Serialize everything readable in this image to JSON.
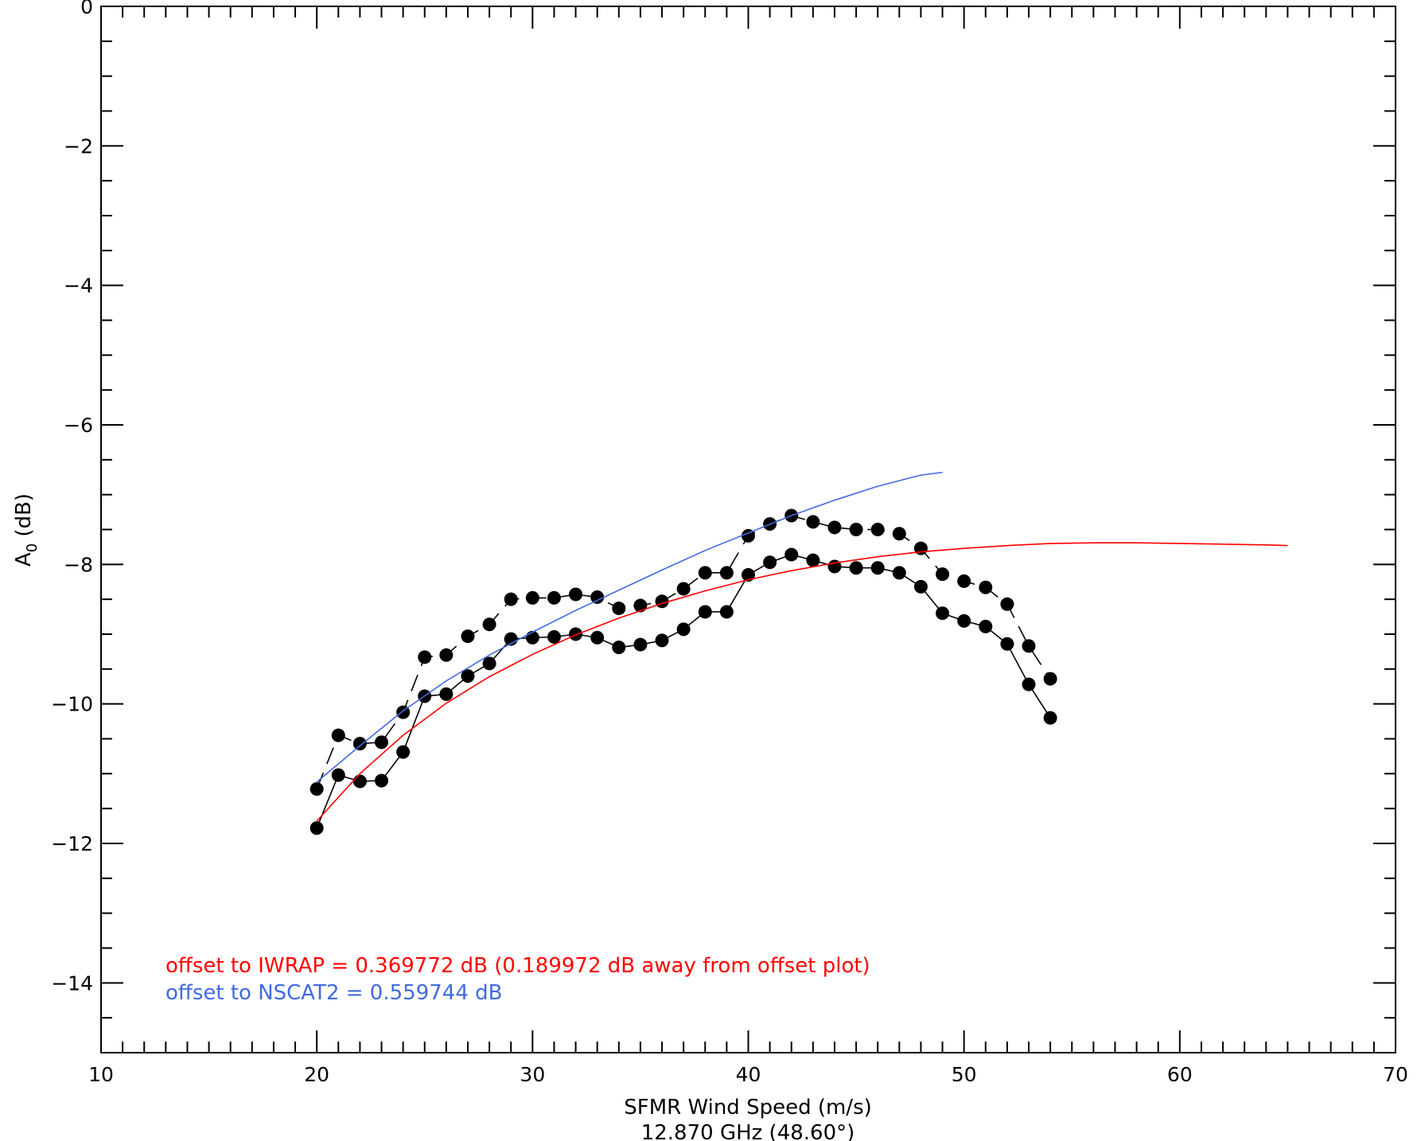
{
  "chart_data": {
    "type": "line",
    "xlabel": "SFMR Wind Speed (m/s)",
    "xlabel_sub": "12.870 GHz (48.60°)",
    "ylabel_main": "A",
    "ylabel_sub": "0",
    "ylabel_unit": " (dB)",
    "xlim": [
      10,
      70
    ],
    "ylim": [
      -15,
      0
    ],
    "x_ticks": [
      10,
      20,
      30,
      40,
      50,
      60,
      70
    ],
    "y_ticks": [
      0,
      -2,
      -4,
      -6,
      -8,
      -10,
      -12,
      -14
    ],
    "x_minor_step": 1,
    "y_minor_step": 0.5,
    "grid": false,
    "series": [
      {
        "style": "dashed-dots",
        "color": "#000000",
        "x": [
          20,
          21,
          22,
          23,
          24,
          25,
          26,
          27,
          28,
          29,
          30,
          31,
          32,
          33,
          34,
          35,
          36,
          37,
          38,
          39,
          40,
          41,
          42,
          43,
          44,
          45,
          46,
          47,
          48,
          49,
          50,
          51,
          52,
          53,
          54
        ],
        "y": [
          -11.22,
          -10.45,
          -10.57,
          -10.55,
          -10.12,
          -9.33,
          -9.3,
          -9.03,
          -8.86,
          -8.5,
          -8.48,
          -8.48,
          -8.43,
          -8.47,
          -8.63,
          -8.59,
          -8.53,
          -8.35,
          -8.12,
          -8.12,
          -7.59,
          -7.42,
          -7.3,
          -7.39,
          -7.47,
          -7.5,
          -7.5,
          -7.56,
          -7.77,
          -8.14,
          -8.24,
          -8.33,
          -8.57,
          -9.17,
          -9.64
        ]
      },
      {
        "style": "solid-dots",
        "color": "#000000",
        "x": [
          20,
          21,
          22,
          23,
          24,
          25,
          26,
          27,
          28,
          29,
          30,
          31,
          32,
          33,
          34,
          35,
          36,
          37,
          38,
          39,
          40,
          41,
          42,
          43,
          44,
          45,
          46,
          47,
          48,
          49,
          50,
          51,
          52,
          53,
          54
        ],
        "y": [
          -11.78,
          -11.02,
          -11.11,
          -11.1,
          -10.69,
          -9.89,
          -9.86,
          -9.6,
          -9.42,
          -9.07,
          -9.05,
          -9.04,
          -9.0,
          -9.05,
          -9.19,
          -9.15,
          -9.09,
          -8.93,
          -8.68,
          -8.68,
          -8.15,
          -7.97,
          -7.86,
          -7.94,
          -8.03,
          -8.05,
          -8.05,
          -8.12,
          -8.32,
          -8.7,
          -8.81,
          -8.89,
          -9.14,
          -9.72,
          -10.2
        ]
      },
      {
        "style": "line",
        "color": "#ff0000",
        "x": [
          20,
          22,
          24,
          26,
          28,
          30,
          32,
          34,
          36,
          38,
          40,
          42,
          44,
          46,
          48,
          50,
          52,
          54,
          56,
          58,
          60,
          62,
          64,
          65
        ],
        "y": [
          -11.68,
          -11.0,
          -10.45,
          -9.99,
          -9.61,
          -9.29,
          -9.01,
          -8.77,
          -8.56,
          -8.38,
          -8.22,
          -8.09,
          -7.98,
          -7.89,
          -7.82,
          -7.77,
          -7.73,
          -7.7,
          -7.69,
          -7.69,
          -7.7,
          -7.71,
          -7.72,
          -7.73
        ]
      },
      {
        "style": "line",
        "color": "#4169e1",
        "x": [
          20,
          22,
          24,
          26,
          28,
          30,
          32,
          34,
          36,
          38,
          40,
          42,
          44,
          46,
          48,
          49
        ],
        "y": [
          -11.12,
          -10.6,
          -10.1,
          -9.67,
          -9.3,
          -8.97,
          -8.66,
          -8.37,
          -8.08,
          -7.8,
          -7.55,
          -7.3,
          -7.08,
          -6.88,
          -6.72,
          -6.68
        ]
      }
    ],
    "annotations": [
      {
        "text": "offset to IWRAP = 0.369772 dB (0.189972 dB away from offset plot)",
        "color": "#ff0000"
      },
      {
        "text": "offset to NSCAT2 = 0.559744 dB",
        "color": "#4169e1"
      }
    ]
  }
}
